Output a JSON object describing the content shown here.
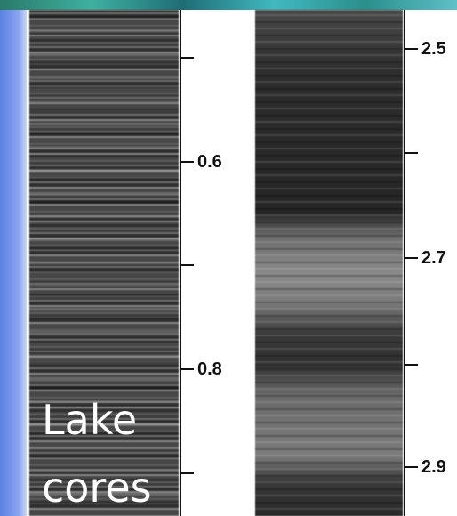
{
  "caption": {
    "line1": "Lake",
    "line2": "cores"
  },
  "left_axis": {
    "labels": [
      "0.6",
      "0.8"
    ]
  },
  "right_axis": {
    "labels": [
      "2.5",
      "2.7",
      "2.9"
    ]
  }
}
